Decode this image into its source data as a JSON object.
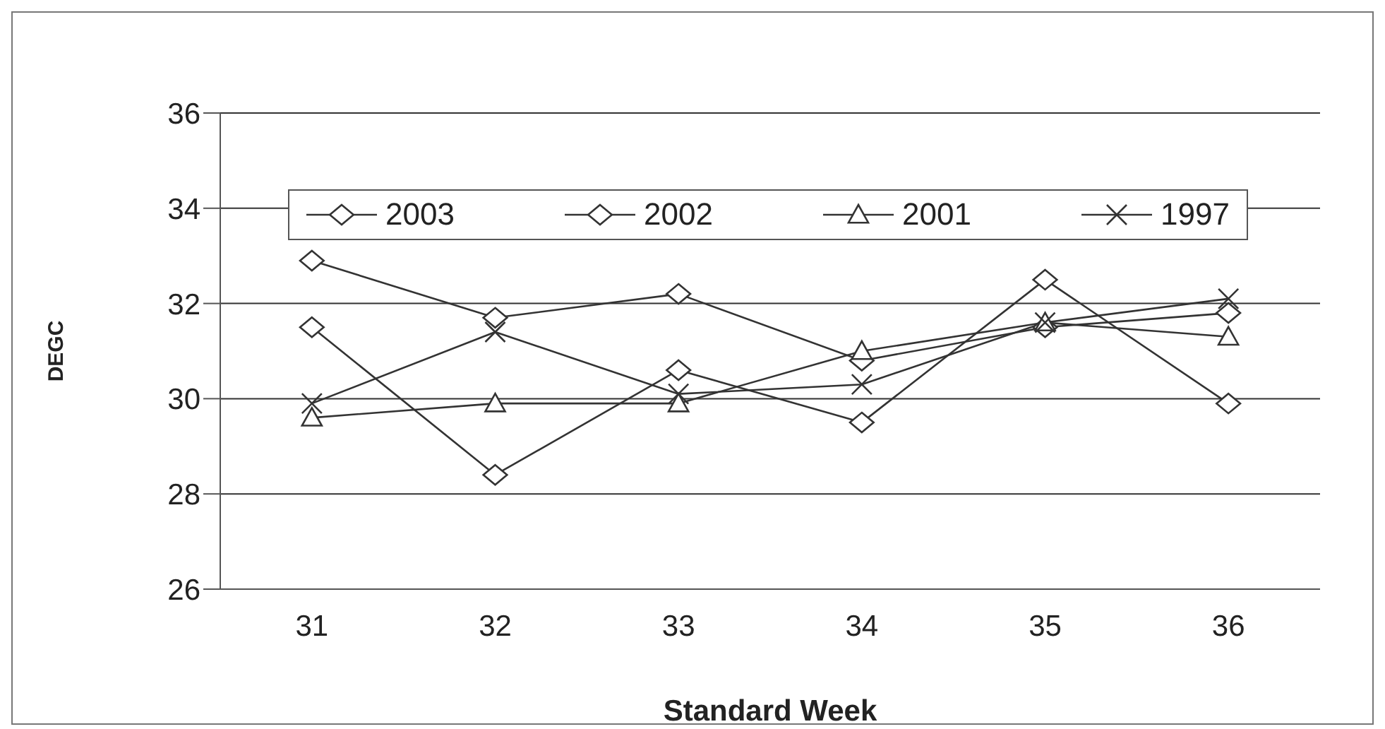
{
  "chart_data": {
    "type": "line",
    "xlabel": "Standard Week",
    "ylabel": "DEGC",
    "categories": [
      "31",
      "32",
      "33",
      "34",
      "35",
      "36"
    ],
    "series": [
      {
        "name": "2003",
        "color": "#333333",
        "marker": "diamond",
        "values": [
          32.9,
          31.7,
          32.2,
          30.8,
          31.5,
          31.8
        ]
      },
      {
        "name": "2002",
        "color": "#333333",
        "marker": "diamond",
        "values": [
          31.5,
          28.4,
          30.6,
          29.5,
          32.5,
          29.9
        ]
      },
      {
        "name": "2001",
        "color": "#333333",
        "marker": "triangle",
        "values": [
          29.6,
          29.9,
          29.9,
          31.0,
          31.6,
          31.3
        ]
      },
      {
        "name": "1997",
        "color": "#333333",
        "marker": "cross",
        "values": [
          29.9,
          31.4,
          30.1,
          30.3,
          31.6,
          32.1
        ]
      }
    ],
    "ylim": [
      26,
      36
    ],
    "yticks": [
      26,
      28,
      30,
      32,
      34,
      36
    ],
    "grid": "y",
    "legend": "top",
    "line_style": "solid"
  }
}
